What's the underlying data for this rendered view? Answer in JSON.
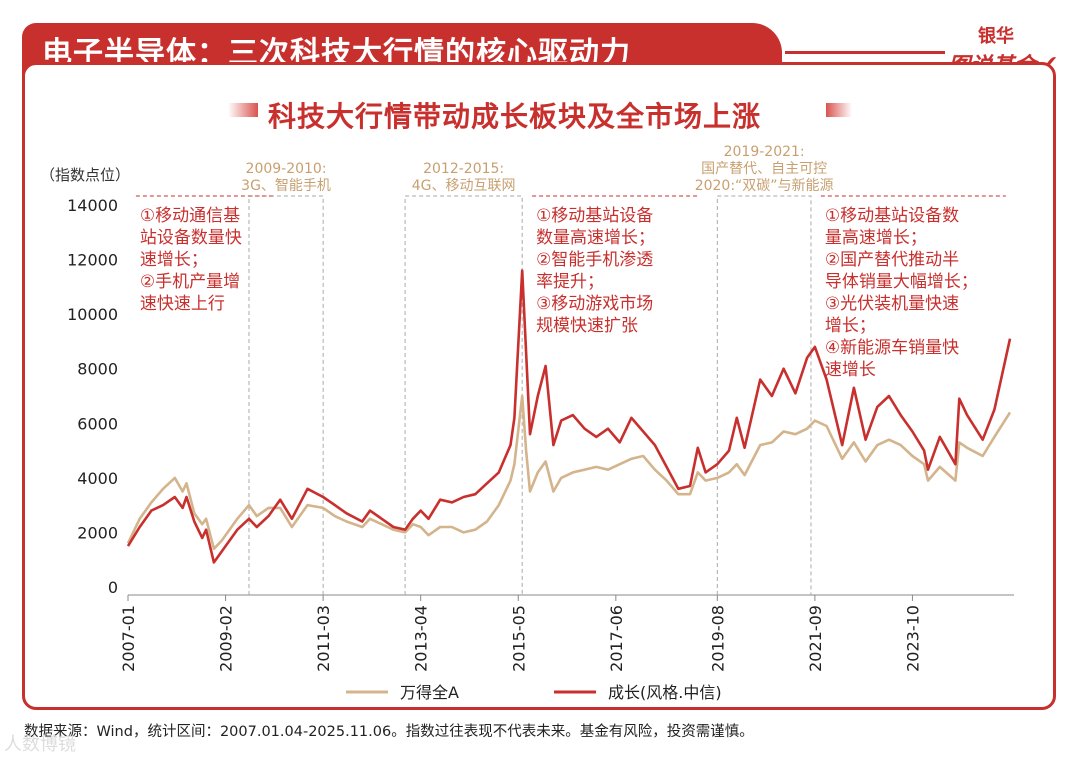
{
  "header": {
    "title": "电子半导体：三次科技大行情的核心驱动力",
    "brand_top": "银华",
    "brand_bottom": "图说基金"
  },
  "footer": {
    "source": "数据来源：Wind，统计区间：2007.01.04-2025.11.06。指数过往表现不代表未来。基金有风险，投资需谨慎。",
    "watermark": "人数博镜"
  },
  "chart_data": {
    "type": "line",
    "title": "科技大行情带动成长板块及全市场上涨",
    "ylabel": "（指数点位）",
    "ylim": [
      0,
      14000
    ],
    "yticks": [
      0,
      2000,
      4000,
      6000,
      8000,
      10000,
      12000,
      14000
    ],
    "xlim": [
      "2007-01",
      "2025-11"
    ],
    "x_tick_labels": [
      "2007-01",
      "2009-02",
      "2011-03",
      "2013-04",
      "2015-05",
      "2017-06",
      "2019-08",
      "2021-09",
      "2023-10"
    ],
    "legend": {
      "placement": "bottom-center"
    },
    "series": [
      {
        "name": "万得全A",
        "color": "#d4b48c",
        "points": [
          [
            "2007-01",
            1600
          ],
          [
            "2007-04",
            2500
          ],
          [
            "2007-07",
            3100
          ],
          [
            "2007-10",
            3600
          ],
          [
            "2008-01",
            4000
          ],
          [
            "2008-03",
            3500
          ],
          [
            "2008-04",
            3800
          ],
          [
            "2008-06",
            2700
          ],
          [
            "2008-08",
            2300
          ],
          [
            "2008-09",
            2500
          ],
          [
            "2008-11",
            1400
          ],
          [
            "2009-01",
            1700
          ],
          [
            "2009-03",
            2100
          ],
          [
            "2009-05",
            2500
          ],
          [
            "2009-08",
            3000
          ],
          [
            "2009-10",
            2600
          ],
          [
            "2010-01",
            2900
          ],
          [
            "2010-04",
            2900
          ],
          [
            "2010-07",
            2200
          ],
          [
            "2010-11",
            3000
          ],
          [
            "2011-03",
            2900
          ],
          [
            "2011-06",
            2600
          ],
          [
            "2011-09",
            2400
          ],
          [
            "2012-01",
            2200
          ],
          [
            "2012-03",
            2500
          ],
          [
            "2012-06",
            2300
          ],
          [
            "2012-09",
            2100
          ],
          [
            "2012-12",
            2000
          ],
          [
            "2013-02",
            2300
          ],
          [
            "2013-04",
            2200
          ],
          [
            "2013-06",
            1900
          ],
          [
            "2013-09",
            2200
          ],
          [
            "2013-12",
            2200
          ],
          [
            "2014-03",
            2000
          ],
          [
            "2014-06",
            2100
          ],
          [
            "2014-09",
            2400
          ],
          [
            "2014-12",
            3000
          ],
          [
            "2015-03",
            3900
          ],
          [
            "2015-04",
            4500
          ],
          [
            "2015-06",
            7000
          ],
          [
            "2015-07",
            5000
          ],
          [
            "2015-08",
            3500
          ],
          [
            "2015-10",
            4200
          ],
          [
            "2015-12",
            4600
          ],
          [
            "2016-02",
            3500
          ],
          [
            "2016-04",
            4000
          ],
          [
            "2016-07",
            4200
          ],
          [
            "2016-10",
            4300
          ],
          [
            "2017-01",
            4400
          ],
          [
            "2017-04",
            4300
          ],
          [
            "2017-07",
            4500
          ],
          [
            "2017-10",
            4700
          ],
          [
            "2018-01",
            4800
          ],
          [
            "2018-04",
            4300
          ],
          [
            "2018-07",
            3900
          ],
          [
            "2018-10",
            3400
          ],
          [
            "2019-01",
            3400
          ],
          [
            "2019-03",
            4200
          ],
          [
            "2019-05",
            3900
          ],
          [
            "2019-08",
            4000
          ],
          [
            "2019-11",
            4200
          ],
          [
            "2020-01",
            4500
          ],
          [
            "2020-03",
            4100
          ],
          [
            "2020-07",
            5200
          ],
          [
            "2020-10",
            5300
          ],
          [
            "2021-01",
            5700
          ],
          [
            "2021-04",
            5600
          ],
          [
            "2021-07",
            5800
          ],
          [
            "2021-09",
            6100
          ],
          [
            "2021-12",
            5900
          ],
          [
            "2022-04",
            4700
          ],
          [
            "2022-07",
            5300
          ],
          [
            "2022-10",
            4600
          ],
          [
            "2023-01",
            5200
          ],
          [
            "2023-04",
            5400
          ],
          [
            "2023-07",
            5200
          ],
          [
            "2023-10",
            4800
          ],
          [
            "2024-01",
            4500
          ],
          [
            "2024-02",
            3900
          ],
          [
            "2024-05",
            4400
          ],
          [
            "2024-09",
            3900
          ],
          [
            "2024-10",
            5300
          ],
          [
            "2024-12",
            5100
          ],
          [
            "2025-04",
            4800
          ],
          [
            "2025-07",
            5500
          ],
          [
            "2025-11",
            6400
          ]
        ]
      },
      {
        "name": "成长(风格.中信)",
        "color": "#c8302e",
        "points": [
          [
            "2007-01",
            1500
          ],
          [
            "2007-04",
            2200
          ],
          [
            "2007-07",
            2800
          ],
          [
            "2007-10",
            3000
          ],
          [
            "2008-01",
            3300
          ],
          [
            "2008-03",
            2900
          ],
          [
            "2008-04",
            3300
          ],
          [
            "2008-06",
            2400
          ],
          [
            "2008-08",
            1800
          ],
          [
            "2008-09",
            2100
          ],
          [
            "2008-11",
            900
          ],
          [
            "2009-01",
            1300
          ],
          [
            "2009-03",
            1700
          ],
          [
            "2009-05",
            2100
          ],
          [
            "2009-08",
            2500
          ],
          [
            "2009-10",
            2200
          ],
          [
            "2010-01",
            2600
          ],
          [
            "2010-04",
            3200
          ],
          [
            "2010-07",
            2500
          ],
          [
            "2010-11",
            3600
          ],
          [
            "2011-03",
            3300
          ],
          [
            "2011-06",
            3000
          ],
          [
            "2011-09",
            2700
          ],
          [
            "2012-01",
            2400
          ],
          [
            "2012-03",
            2800
          ],
          [
            "2012-06",
            2500
          ],
          [
            "2012-09",
            2200
          ],
          [
            "2012-12",
            2100
          ],
          [
            "2013-02",
            2500
          ],
          [
            "2013-04",
            2800
          ],
          [
            "2013-06",
            2500
          ],
          [
            "2013-09",
            3200
          ],
          [
            "2013-12",
            3100
          ],
          [
            "2014-03",
            3300
          ],
          [
            "2014-06",
            3400
          ],
          [
            "2014-09",
            3800
          ],
          [
            "2014-12",
            4200
          ],
          [
            "2015-03",
            5200
          ],
          [
            "2015-04",
            6200
          ],
          [
            "2015-06",
            11600
          ],
          [
            "2015-07",
            8600
          ],
          [
            "2015-08",
            5600
          ],
          [
            "2015-10",
            7000
          ],
          [
            "2015-12",
            8100
          ],
          [
            "2016-02",
            5200
          ],
          [
            "2016-04",
            6100
          ],
          [
            "2016-07",
            6300
          ],
          [
            "2016-10",
            5800
          ],
          [
            "2017-01",
            5500
          ],
          [
            "2017-04",
            5800
          ],
          [
            "2017-07",
            5300
          ],
          [
            "2017-10",
            6200
          ],
          [
            "2018-01",
            5700
          ],
          [
            "2018-04",
            5200
          ],
          [
            "2018-07",
            4400
          ],
          [
            "2018-10",
            3600
          ],
          [
            "2019-01",
            3700
          ],
          [
            "2019-03",
            5100
          ],
          [
            "2019-05",
            4200
          ],
          [
            "2019-08",
            4500
          ],
          [
            "2019-11",
            5000
          ],
          [
            "2020-01",
            6200
          ],
          [
            "2020-03",
            5100
          ],
          [
            "2020-07",
            7600
          ],
          [
            "2020-10",
            7000
          ],
          [
            "2021-01",
            8000
          ],
          [
            "2021-04",
            7100
          ],
          [
            "2021-07",
            8400
          ],
          [
            "2021-09",
            8800
          ],
          [
            "2021-12",
            7600
          ],
          [
            "2022-04",
            5200
          ],
          [
            "2022-07",
            7300
          ],
          [
            "2022-10",
            5400
          ],
          [
            "2023-01",
            6600
          ],
          [
            "2023-04",
            7000
          ],
          [
            "2023-07",
            6300
          ],
          [
            "2023-10",
            5700
          ],
          [
            "2024-01",
            5000
          ],
          [
            "2024-02",
            4300
          ],
          [
            "2024-05",
            5500
          ],
          [
            "2024-09",
            4500
          ],
          [
            "2024-10",
            6900
          ],
          [
            "2024-12",
            6300
          ],
          [
            "2025-04",
            5400
          ],
          [
            "2025-07",
            6500
          ],
          [
            "2025-11",
            9100
          ]
        ]
      }
    ],
    "periods": [
      {
        "start": "2009-08",
        "end": "2011-03",
        "label_lines": [
          "2009-2010:",
          "3G、智能手机"
        ]
      },
      {
        "start": "2012-12",
        "end": "2015-06",
        "label_lines": [
          "2012-2015:",
          "4G、移动互联网"
        ]
      },
      {
        "start": "2019-08",
        "end": "2021-08",
        "label_lines": [
          "2019-2021:",
          "国产替代、自主可控",
          "2020:“双碳”与新能源"
        ]
      }
    ],
    "annotations": [
      {
        "anchor": "2007-02",
        "lines": [
          "①移动通信基",
          "站设备数量快",
          "速增长；",
          "②手机产量增",
          "速快速上行"
        ]
      },
      {
        "anchor": "2015-07",
        "lines": [
          "①移动基站设备",
          "数量高速增长；",
          "②智能手机渗透",
          "率提升；",
          "③移动游戏市场",
          "规模快速扩张"
        ]
      },
      {
        "anchor": "2021-09",
        "lines": [
          "①移动基站设备数",
          "量高速增长；",
          "②国产替代推动半",
          "导体销量大幅增长；",
          "③光伏装机量快速",
          "增长；",
          "④新能源车销量快",
          "速增长"
        ]
      }
    ]
  }
}
